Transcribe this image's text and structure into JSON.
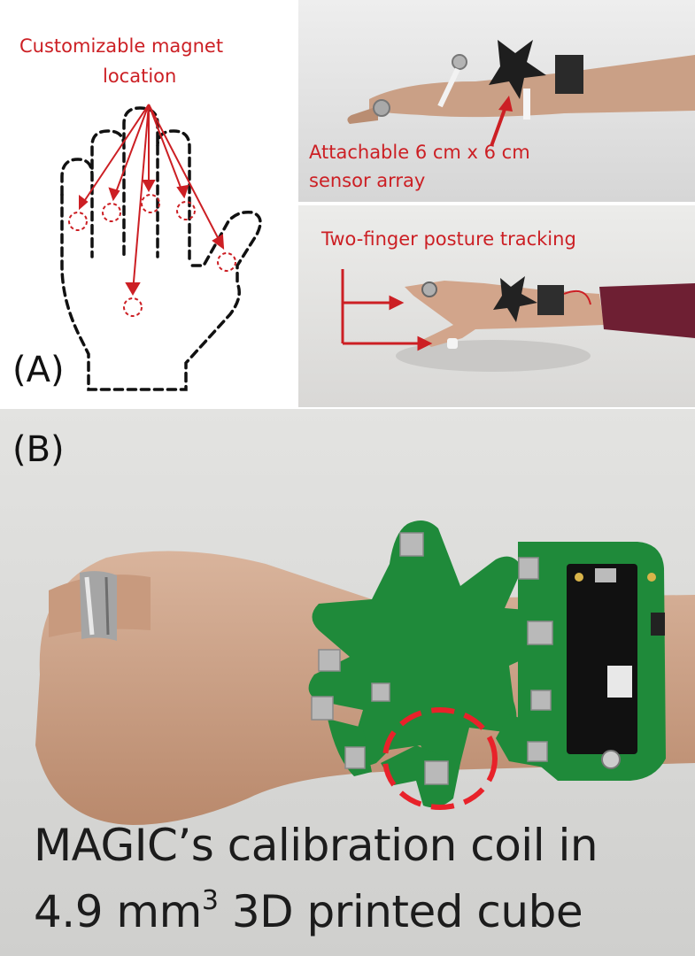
{
  "panel_a": {
    "letter": "(A)",
    "magnet_label_line1": "Customizable magnet",
    "magnet_label_line2": "location",
    "sensor_label_line1": "Attachable 6 cm x 6 cm",
    "sensor_label_line2": "sensor array",
    "tracking_label": "Two-finger posture tracking"
  },
  "panel_b": {
    "letter": "(B)",
    "caption_line1_brand": "MAGIC",
    "caption_line1_rest": "’s calibration coil in",
    "caption_line2_pre": "4.9 mm",
    "caption_line2_sup": "3",
    "caption_line2_post": " 3D printed cube"
  },
  "colors": {
    "annotation_red": "#cc1f24",
    "pcb_green": "#1f8a3a"
  }
}
